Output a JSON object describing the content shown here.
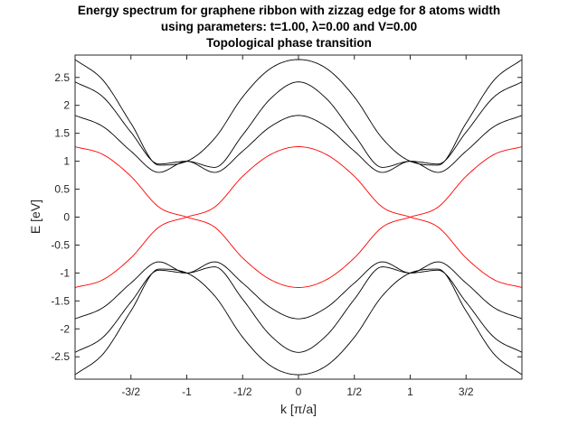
{
  "window": {
    "title_lines": [
      "Energy spectrum for graphene ribbon with zizzag edge for 8 atoms width",
      "using parameters: t=1.00, λ=0.00 and V=0.00",
      "Topological phase transition"
    ]
  },
  "chart_data": {
    "type": "line",
    "title": "Energy spectrum for graphene ribbon with zizzag edge for 8 atoms width using parameters: t=1.00, λ=0.00 and V=0.00 Topological phase transition",
    "xlabel": "k [π/a]",
    "ylabel": "E [eV]",
    "xlim": [
      -2,
      2
    ],
    "ylim": [
      -2.9,
      2.9
    ],
    "x_ticks": [
      {
        "value": -1.5,
        "label": "-3/2"
      },
      {
        "value": -1.0,
        "label": "-1"
      },
      {
        "value": -0.5,
        "label": "-1/2"
      },
      {
        "value": 0.0,
        "label": "0"
      },
      {
        "value": 0.5,
        "label": "1/2"
      },
      {
        "value": 1.0,
        "label": "1"
      },
      {
        "value": 1.5,
        "label": "3/2"
      }
    ],
    "y_ticks": [
      {
        "value": 2.5,
        "label": "2.5"
      },
      {
        "value": 2.0,
        "label": "2"
      },
      {
        "value": 1.5,
        "label": "1.5"
      },
      {
        "value": 1.0,
        "label": "1"
      },
      {
        "value": 0.5,
        "label": "0.5"
      },
      {
        "value": 0.0,
        "label": "0"
      },
      {
        "value": -0.5,
        "label": "-0.5"
      },
      {
        "value": -1.0,
        "label": "-1"
      },
      {
        "value": -1.5,
        "label": "-1.5"
      },
      {
        "value": -2.0,
        "label": "-2"
      },
      {
        "value": -2.5,
        "label": "-2.5"
      }
    ],
    "grid": false,
    "ribbon_width_atoms": 8,
    "hopping_t": 1.0,
    "lambda": 0.0,
    "V": 0.0,
    "colors": {
      "bulk_bands": "#000000",
      "edge_bands": "#ff0000",
      "axes": "#262626"
    },
    "series": [
      {
        "color": "#000000",
        "x": [
          -2,
          -1.75,
          -1.5,
          -1.25,
          -1,
          -0.75,
          -0.5,
          -0.25,
          0,
          0.25,
          0.5,
          0.75,
          1,
          1.25,
          1.5,
          1.75,
          2
        ],
        "y": [
          2.82,
          2.45,
          1.68,
          0.93,
          1.0,
          1.41,
          2.15,
          2.66,
          2.82,
          2.66,
          2.15,
          1.41,
          1.0,
          0.93,
          1.68,
          2.45,
          2.82
        ]
      },
      {
        "color": "#000000",
        "x": [
          -2,
          -1.75,
          -1.5,
          -1.25,
          -1,
          -0.75,
          -0.5,
          -0.25,
          0,
          0.25,
          0.5,
          0.75,
          1,
          1.25,
          1.5,
          1.75,
          2
        ],
        "y": [
          2.42,
          2.15,
          1.52,
          0.95,
          1.0,
          0.89,
          1.47,
          2.12,
          2.42,
          2.12,
          1.47,
          0.89,
          1.0,
          0.95,
          1.52,
          2.15,
          2.42
        ]
      },
      {
        "color": "#000000",
        "x": [
          -2,
          -1.75,
          -1.5,
          -1.25,
          -1,
          -0.75,
          -0.5,
          -0.25,
          0,
          0.25,
          0.5,
          0.75,
          1,
          1.25,
          1.5,
          1.75,
          2
        ],
        "y": [
          1.82,
          1.62,
          1.18,
          0.8,
          1.0,
          0.8,
          1.18,
          1.62,
          1.82,
          1.62,
          1.18,
          0.8,
          1.0,
          0.8,
          1.18,
          1.62,
          1.82
        ]
      },
      {
        "color": "#ff0000",
        "x": [
          -2,
          -1.75,
          -1.5,
          -1.25,
          -1,
          -0.75,
          -0.5,
          -0.25,
          0,
          0.25,
          0.5,
          0.75,
          1,
          1.25,
          1.5,
          1.75,
          2
        ],
        "y": [
          -1.26,
          -1.12,
          -0.73,
          -0.18,
          0.0,
          0.18,
          0.73,
          1.12,
          1.26,
          1.12,
          0.73,
          0.18,
          0.0,
          -0.18,
          -0.73,
          -1.12,
          -1.26
        ]
      },
      {
        "color": "#ff0000",
        "x": [
          -2,
          -1.75,
          -1.5,
          -1.25,
          -1,
          -0.75,
          -0.5,
          -0.25,
          0,
          0.25,
          0.5,
          0.75,
          1,
          1.25,
          1.5,
          1.75,
          2
        ],
        "y": [
          1.26,
          1.12,
          0.73,
          0.18,
          0.0,
          -0.18,
          -0.73,
          -1.12,
          -1.26,
          -1.12,
          -0.73,
          -0.18,
          0.0,
          0.18,
          0.73,
          1.12,
          1.26
        ]
      },
      {
        "color": "#000000",
        "x": [
          -2,
          -1.75,
          -1.5,
          -1.25,
          -1,
          -0.75,
          -0.5,
          -0.25,
          0,
          0.25,
          0.5,
          0.75,
          1,
          1.25,
          1.5,
          1.75,
          2
        ],
        "y": [
          -1.82,
          -1.62,
          -1.18,
          -0.8,
          -1.0,
          -0.8,
          -1.18,
          -1.62,
          -1.82,
          -1.62,
          -1.18,
          -0.8,
          -1.0,
          -0.8,
          -1.18,
          -1.62,
          -1.82
        ]
      },
      {
        "color": "#000000",
        "x": [
          -2,
          -1.75,
          -1.5,
          -1.25,
          -1,
          -0.75,
          -0.5,
          -0.25,
          0,
          0.25,
          0.5,
          0.75,
          1,
          1.25,
          1.5,
          1.75,
          2
        ],
        "y": [
          -2.42,
          -2.15,
          -1.52,
          -0.95,
          -1.0,
          -0.89,
          -1.47,
          -2.12,
          -2.42,
          -2.12,
          -1.47,
          -0.89,
          -1.0,
          -0.95,
          -1.52,
          -2.15,
          -2.42
        ]
      },
      {
        "color": "#000000",
        "x": [
          -2,
          -1.75,
          -1.5,
          -1.25,
          -1,
          -0.75,
          -0.5,
          -0.25,
          0,
          0.25,
          0.5,
          0.75,
          1,
          1.25,
          1.5,
          1.75,
          2
        ],
        "y": [
          -2.82,
          -2.45,
          -1.68,
          -0.93,
          -1.0,
          -1.41,
          -2.15,
          -2.66,
          -2.82,
          -2.66,
          -2.15,
          -1.41,
          -1.0,
          -0.93,
          -1.68,
          -2.45,
          -2.82
        ]
      }
    ]
  }
}
